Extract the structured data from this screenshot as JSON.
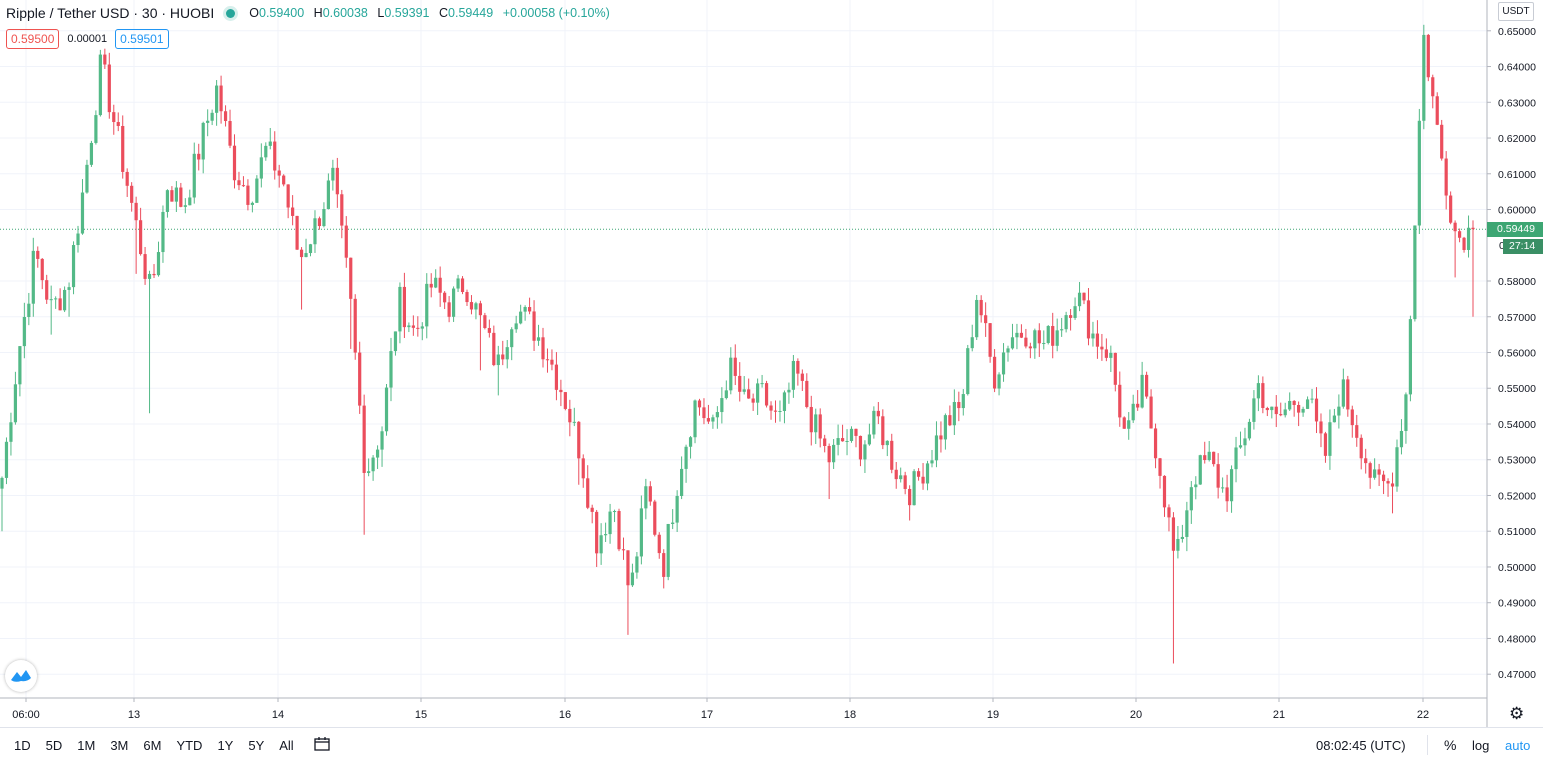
{
  "header": {
    "symbol": "Ripple / Tether USD · 30 · HUOBI",
    "open_label": "O",
    "open": "0.59400",
    "high_label": "H",
    "high": "0.60038",
    "low_label": "L",
    "low": "0.59391",
    "close_label": "C",
    "close": "0.59449",
    "change": "+0.00058 (+0.10%)",
    "bid": "0.59500",
    "spread": "0.00001",
    "ask": "0.59501",
    "currency": "USDT"
  },
  "price_scale": {
    "last_price": "0.59449",
    "countdown": "27:14",
    "hidden_label_fragment": "0"
  },
  "time_range_buttons": [
    "1D",
    "5D",
    "1M",
    "3M",
    "6M",
    "YTD",
    "1Y",
    "5Y",
    "All"
  ],
  "bottom_right": {
    "time_utc": "08:02:45 (UTC)",
    "percent": "%",
    "log": "log",
    "auto": "auto"
  },
  "colors": {
    "up": "#26a69a",
    "down": "#ef5350",
    "up_candle": "#53b987",
    "down_candle": "#eb4d5c",
    "last_price_line": "#3da673",
    "grid": "#f0f3fa"
  },
  "icons": {
    "status": "market-open-dot",
    "logo": "tradingview-logo-icon",
    "settings": "gear-icon",
    "date_range": "calendar-range-icon"
  },
  "chart_data": {
    "type": "candlestick",
    "ylim": [
      0.465,
      0.6515
    ],
    "y_ticks": [
      "0.65000",
      "0.64000",
      "0.63000",
      "0.62000",
      "0.61000",
      "0.60000",
      "0.58000",
      "0.57000",
      "0.56000",
      "0.55000",
      "0.54000",
      "0.53000",
      "0.52000",
      "0.51000",
      "0.50000",
      "0.49000",
      "0.48000",
      "0.47000"
    ],
    "x_ticks": [
      "06:00",
      "13",
      "14",
      "15",
      "16",
      "17",
      "18",
      "19",
      "20",
      "21",
      "22"
    ],
    "anchors": [
      {
        "v": 0.525,
        "lo": 0.51
      },
      {
        "v": 0.56,
        "lo": 0.552
      },
      {
        "v": 0.588,
        "lo": 0.57
      },
      {
        "v": 0.572,
        "lo": 0.565
      },
      {
        "v": 0.579,
        "lo": 0.57
      },
      {
        "v": 0.608
      },
      {
        "v": 0.641
      },
      {
        "v": 0.62
      },
      {
        "v": 0.598,
        "lo": 0.582
      },
      {
        "v": 0.576,
        "lo": 0.543
      },
      {
        "v": 0.607
      },
      {
        "v": 0.601
      },
      {
        "v": 0.618
      },
      {
        "v": 0.634
      },
      {
        "v": 0.612
      },
      {
        "v": 0.604
      },
      {
        "v": 0.617
      },
      {
        "v": 0.608
      },
      {
        "v": 0.586,
        "lo": 0.572
      },
      {
        "v": 0.596
      },
      {
        "v": 0.609
      },
      {
        "v": 0.578,
        "lo": 0.561
      },
      {
        "v": 0.526,
        "lo": 0.509
      },
      {
        "v": 0.539,
        "lo": 0.528
      },
      {
        "v": 0.575
      },
      {
        "v": 0.565
      },
      {
        "v": 0.579
      },
      {
        "v": 0.573
      },
      {
        "v": 0.58
      },
      {
        "v": 0.568,
        "lo": 0.555
      },
      {
        "v": 0.556,
        "lo": 0.548
      },
      {
        "v": 0.573
      },
      {
        "v": 0.568
      },
      {
        "v": 0.56
      },
      {
        "v": 0.548
      },
      {
        "v": 0.532,
        "lo": 0.523
      },
      {
        "v": 0.507,
        "lo": 0.5
      },
      {
        "v": 0.518
      },
      {
        "v": 0.492,
        "lo": 0.481
      },
      {
        "v": 0.522
      },
      {
        "v": 0.5,
        "lo": 0.494
      },
      {
        "v": 0.528
      },
      {
        "v": 0.547
      },
      {
        "v": 0.538
      },
      {
        "v": 0.556
      },
      {
        "v": 0.545
      },
      {
        "v": 0.548
      },
      {
        "v": 0.54
      },
      {
        "v": 0.555
      },
      {
        "v": 0.541
      },
      {
        "v": 0.53,
        "lo": 0.519
      },
      {
        "v": 0.536
      },
      {
        "v": 0.534
      },
      {
        "v": 0.541
      },
      {
        "v": 0.528
      },
      {
        "v": 0.521,
        "lo": 0.513
      },
      {
        "v": 0.53
      },
      {
        "v": 0.54
      },
      {
        "v": 0.544
      },
      {
        "v": 0.577
      },
      {
        "v": 0.553
      },
      {
        "v": 0.565
      },
      {
        "v": 0.566
      },
      {
        "v": 0.562
      },
      {
        "v": 0.568
      },
      {
        "v": 0.577
      },
      {
        "v": 0.565
      },
      {
        "v": 0.56
      },
      {
        "v": 0.535
      },
      {
        "v": 0.55
      },
      {
        "v": 0.53
      },
      {
        "v": 0.5,
        "lo": 0.473
      },
      {
        "v": 0.525
      },
      {
        "v": 0.53
      },
      {
        "v": 0.52
      },
      {
        "v": 0.534
      },
      {
        "v": 0.551
      },
      {
        "v": 0.54
      },
      {
        "v": 0.546
      },
      {
        "v": 0.548
      },
      {
        "v": 0.53
      },
      {
        "v": 0.551
      },
      {
        "v": 0.538
      },
      {
        "v": 0.523
      },
      {
        "v": 0.523,
        "lo": 0.515
      },
      {
        "v": 0.55
      },
      {
        "v": 0.649
      },
      {
        "v": 0.617
      },
      {
        "v": 0.592,
        "lo": 0.581
      },
      {
        "v": 0.5945,
        "lo": 0.57
      }
    ]
  }
}
